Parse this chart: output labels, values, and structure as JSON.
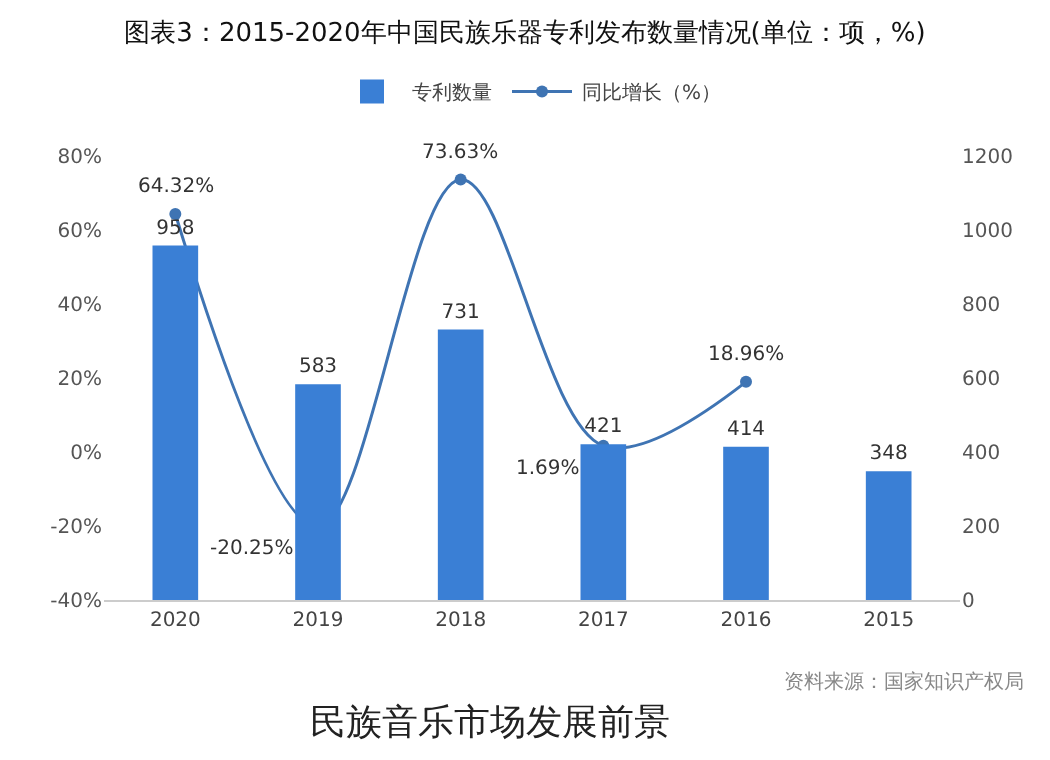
{
  "chart_data": {
    "type": "bar",
    "title": "图表3：2015-2020年中国民族乐器专利发布数量情况(单位：项，%)",
    "categories": [
      "2020",
      "2019",
      "2018",
      "2017",
      "2016",
      "2015"
    ],
    "series": [
      {
        "name": "专利数量",
        "axis": "y2",
        "color": "#3a7fd5",
        "values": [
          958,
          583,
          731,
          421,
          414,
          348
        ],
        "value_labels": [
          "958",
          "583",
          "731",
          "421",
          "414",
          "348"
        ]
      },
      {
        "name": "同比增长（%）",
        "type": "line",
        "axis": "y",
        "color": "#3f74b3",
        "marker": "circle",
        "values": [
          64.32,
          -20.25,
          73.63,
          1.69,
          18.96,
          null
        ],
        "value_labels": [
          "64.32%",
          "-20.25%",
          "73.63%",
          "1.69%",
          "18.96%",
          null
        ]
      }
    ],
    "ylim": [
      -40,
      80
    ],
    "yticks": [
      {
        "value": -40,
        "label": "-40%"
      },
      {
        "value": -20,
        "label": "-20%"
      },
      {
        "value": 0,
        "label": "0%"
      },
      {
        "value": 20,
        "label": "20%"
      },
      {
        "value": 40,
        "label": "40%"
      },
      {
        "value": 60,
        "label": "60%"
      },
      {
        "value": 80,
        "label": "80%"
      }
    ],
    "y2lim": [
      0,
      1200
    ],
    "y2ticks": [
      0,
      200,
      400,
      600,
      800,
      1000,
      1200
    ],
    "grid": false,
    "legend": "top",
    "annotations": [
      "资料来源：国家知识产权局",
      "民族音乐市场发展前景"
    ]
  }
}
